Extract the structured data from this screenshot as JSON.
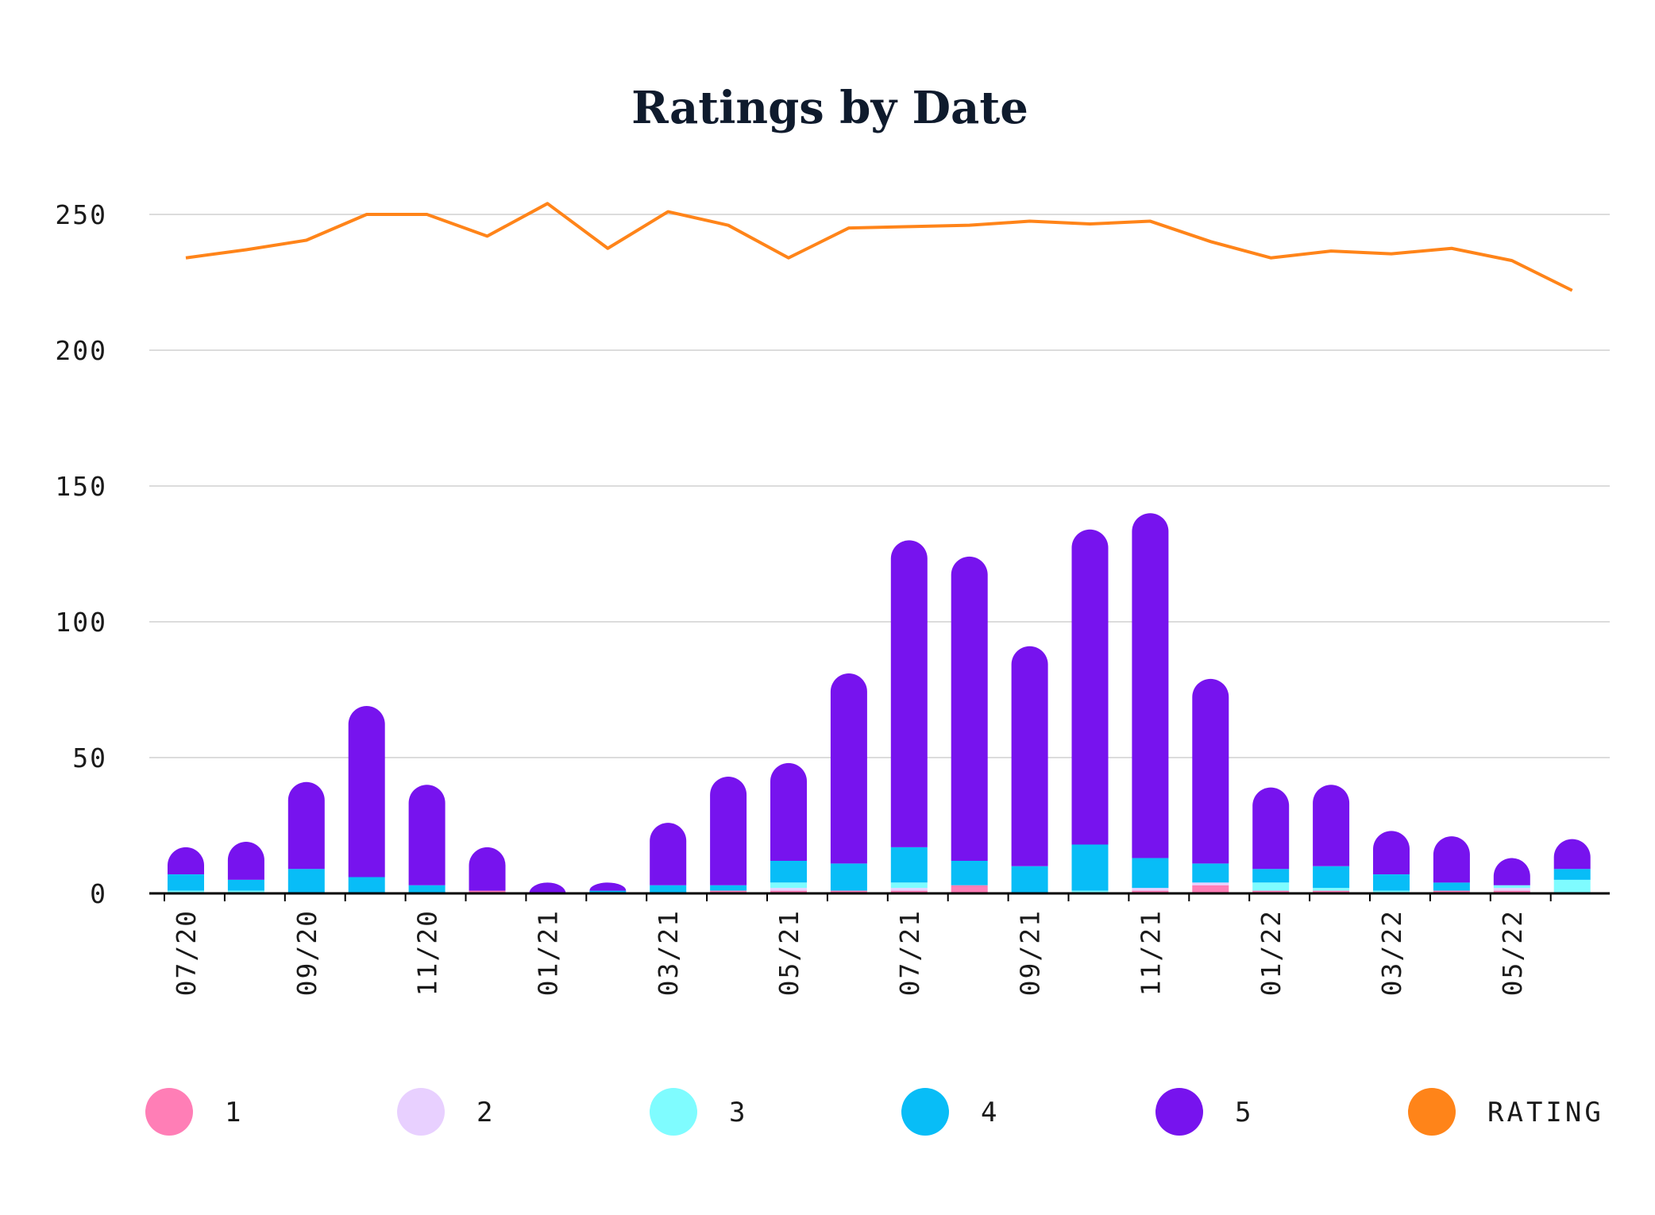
{
  "chart_data": {
    "type": "bar",
    "stacked": true,
    "title": "Ratings by Date",
    "xlabel": "",
    "ylabel": "",
    "ylim": [
      0,
      260
    ],
    "yticks": [
      0,
      50,
      100,
      150,
      200,
      250
    ],
    "x_tick_labels": [
      "07/20",
      "09/20",
      "11/20",
      "01/21",
      "03/21",
      "05/21",
      "07/21",
      "09/21",
      "11/21",
      "01/22",
      "03/22",
      "05/22"
    ],
    "categories": [
      "07/20",
      "08/20",
      "09/20",
      "10/20",
      "11/20",
      "12/20",
      "01/21",
      "02/21",
      "03/21",
      "04/21",
      "05/21",
      "06/21",
      "07/21",
      "08/21",
      "09/21",
      "10/21",
      "11/21",
      "12/21",
      "01/22",
      "02/22",
      "03/22",
      "04/22",
      "05/22",
      "06/22"
    ],
    "series": [
      {
        "name": "1",
        "color": "#ff7eb6",
        "values": [
          0,
          0,
          0,
          0,
          0,
          1,
          0,
          0,
          0,
          1,
          1,
          1,
          1,
          3,
          0,
          0,
          1,
          3,
          1,
          1,
          0,
          1,
          1,
          0
        ]
      },
      {
        "name": "2",
        "color": "#e8d0ff",
        "values": [
          0,
          0,
          0,
          0,
          0,
          0,
          0,
          0,
          0,
          0,
          1,
          0,
          1,
          0,
          0,
          0,
          1,
          1,
          0,
          0,
          0,
          0,
          1,
          0
        ]
      },
      {
        "name": "3",
        "color": "#7ffcff",
        "values": [
          1,
          1,
          0,
          0,
          0,
          0,
          0,
          0,
          0,
          0,
          2,
          0,
          2,
          0,
          0,
          1,
          0,
          0,
          3,
          1,
          1,
          0,
          1,
          5
        ]
      },
      {
        "name": "4",
        "color": "#08bdf7",
        "values": [
          6,
          4,
          9,
          6,
          3,
          0,
          0,
          1,
          3,
          2,
          8,
          10,
          13,
          9,
          10,
          17,
          11,
          7,
          5,
          8,
          6,
          3,
          0,
          4
        ]
      },
      {
        "name": "5",
        "color": "#7713ee",
        "values": [
          10,
          14,
          32,
          63,
          37,
          16,
          4,
          3,
          23,
          40,
          36,
          70,
          113,
          112,
          81,
          116,
          127,
          68,
          30,
          30,
          16,
          17,
          10,
          11
        ]
      }
    ],
    "line_series": {
      "name": "RATING",
      "color": "#ff8419",
      "values": [
        234,
        237,
        240.5,
        250,
        250,
        242,
        254,
        237.5,
        251,
        246,
        234,
        245,
        245.5,
        246,
        247.5,
        246.5,
        247.5,
        240,
        234,
        236.5,
        235.5,
        237.5,
        233,
        222
      ]
    },
    "legend": {
      "position": "bottom",
      "items": [
        {
          "label": "1",
          "color": "#ff7eb6"
        },
        {
          "label": "2",
          "color": "#e8d0ff"
        },
        {
          "label": "3",
          "color": "#7ffcff"
        },
        {
          "label": "4",
          "color": "#08bdf7"
        },
        {
          "label": "5",
          "color": "#7713ee"
        },
        {
          "label": "RATING",
          "color": "#ff8419"
        }
      ]
    }
  }
}
